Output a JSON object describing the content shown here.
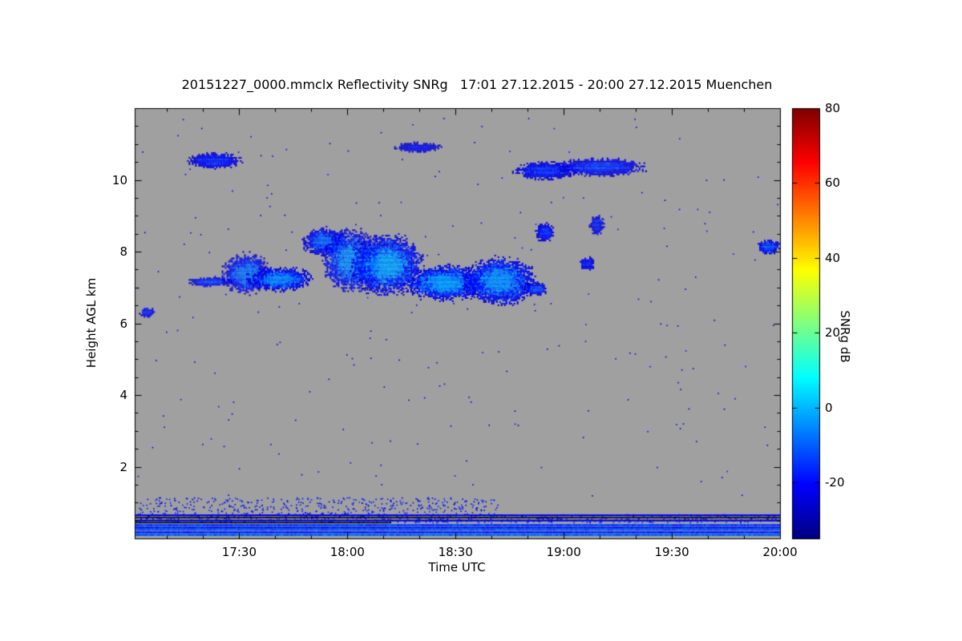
{
  "figure": {
    "background": "#ffffff"
  },
  "chart_data": {
    "type": "heatmap",
    "title": "20151227_0000.mmclx Reflectivity SNRg   17:01 27.12.2015 - 20:00 27.12.2015 Muenchen",
    "xlabel": "Time UTC",
    "ylabel": "Height AGL km",
    "x_range_hours": [
      17.016667,
      20.0
    ],
    "x_ticks": [
      {
        "label": "17:30",
        "hour": 17.5
      },
      {
        "label": "18:00",
        "hour": 18.0
      },
      {
        "label": "18:30",
        "hour": 18.5
      },
      {
        "label": "19:00",
        "hour": 19.0
      },
      {
        "label": "19:30",
        "hour": 19.5
      },
      {
        "label": "20:00",
        "hour": 20.0
      }
    ],
    "x_minor_step_hours": 0.1666667,
    "ylim_km": [
      0,
      12
    ],
    "y_ticks": [
      2,
      4,
      6,
      8,
      10
    ],
    "y_minor_step_km": 0.5,
    "no_signal_color": "#a0a0a0",
    "frame_color": "#000000",
    "colorbar": {
      "label": "SNRg dB",
      "range": [
        -35,
        80
      ],
      "ticks": [
        80,
        60,
        40,
        20,
        0,
        -20
      ],
      "colormap": "jet"
    },
    "echoes": [
      {
        "t": [
          17.27,
          17.46
        ],
        "h": [
          7.05,
          7.3
        ],
        "core": -14
      },
      {
        "t": [
          17.43,
          17.63
        ],
        "h": [
          6.9,
          7.9
        ],
        "core": -8
      },
      {
        "t": [
          17.55,
          17.82
        ],
        "h": [
          6.95,
          7.55
        ],
        "core": -6
      },
      {
        "t": [
          17.8,
          17.98
        ],
        "h": [
          7.95,
          8.65
        ],
        "core": -10
      },
      {
        "t": [
          17.9,
          18.13
        ],
        "h": [
          7.0,
          8.55
        ],
        "core": -5
      },
      {
        "t": [
          18.03,
          18.33
        ],
        "h": [
          6.9,
          8.4
        ],
        "core": -3
      },
      {
        "t": [
          18.28,
          18.62
        ],
        "h": [
          6.7,
          7.6
        ],
        "core": -4
      },
      {
        "t": [
          18.55,
          18.85
        ],
        "h": [
          6.6,
          7.8
        ],
        "core": -5
      },
      {
        "t": [
          18.82,
          18.92
        ],
        "h": [
          6.8,
          7.15
        ],
        "core": -12
      },
      {
        "t": [
          17.27,
          17.5
        ],
        "h": [
          10.35,
          10.75
        ],
        "core": -17
      },
      {
        "t": [
          18.22,
          18.42
        ],
        "h": [
          10.8,
          11.05
        ],
        "core": -21
      },
      {
        "t": [
          18.78,
          19.05
        ],
        "h": [
          10.05,
          10.5
        ],
        "core": -16
      },
      {
        "t": [
          18.98,
          19.36
        ],
        "h": [
          10.15,
          10.6
        ],
        "core": -15
      },
      {
        "t": [
          18.87,
          18.95
        ],
        "h": [
          8.3,
          8.8
        ],
        "core": -16
      },
      {
        "t": [
          19.12,
          19.18
        ],
        "h": [
          8.5,
          9.0
        ],
        "core": -18
      },
      {
        "t": [
          19.07,
          19.14
        ],
        "h": [
          7.5,
          7.85
        ],
        "core": -18
      },
      {
        "t": [
          19.9,
          19.99
        ],
        "h": [
          7.95,
          8.35
        ],
        "core": -13
      },
      {
        "t": [
          17.04,
          17.1
        ],
        "h": [
          6.2,
          6.45
        ],
        "core": -16
      }
    ],
    "surface_bands": [
      {
        "h": 0.645,
        "th": 0.05,
        "value": -22
      },
      {
        "h": 0.58,
        "th": 0.035,
        "color": "#000000"
      },
      {
        "h": 0.5,
        "th": 0.05,
        "value": -24
      },
      {
        "h": 0.44,
        "th": 0.035,
        "color": "#000000",
        "t": [
          17.016667,
          18.2
        ]
      },
      {
        "h": 0.37,
        "th": 0.06,
        "value": -13
      },
      {
        "h": 0.3,
        "th": 0.05,
        "value": -19
      },
      {
        "h": 0.24,
        "th": 0.05,
        "value": -11
      },
      {
        "h": 0.17,
        "th": 0.05,
        "value": -18
      },
      {
        "h": 0.1,
        "th": 0.06,
        "value": -9
      }
    ],
    "speckle": [
      {
        "t": [
          17.03,
          18.7
        ],
        "h": [
          0.68,
          1.15
        ],
        "count": 450,
        "value": -20
      },
      {
        "t": [
          17.03,
          20.0
        ],
        "h": [
          0.45,
          0.68
        ],
        "count": 650,
        "value": -18
      },
      {
        "t": [
          17.03,
          20.0
        ],
        "h": [
          1.15,
          11.8
        ],
        "count": 230,
        "value": -22
      }
    ]
  }
}
